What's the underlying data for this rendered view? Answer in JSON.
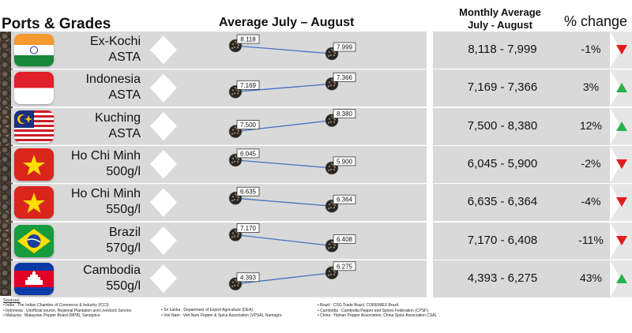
{
  "headers": {
    "ports_grades": "Ports & Grades",
    "average": "Average July – August",
    "monthly_line1": "Monthly Average",
    "monthly_line2": "July - August",
    "change": "% change"
  },
  "colors": {
    "band": "#d9d9d9",
    "line": "#4472c4",
    "up": "#27b24a",
    "down": "#e31b1b"
  },
  "chart_data": {
    "type": "line",
    "title": "Average July – August",
    "x": [
      "July",
      "August"
    ],
    "series": [
      {
        "name_line1": "Ex-Kochi",
        "name_line2": "ASTA",
        "flag": "india-flag-icon",
        "values": [
          8.118,
          7.999
        ],
        "july_label": "8.118",
        "august_label": "7.999",
        "range": "8,118 - 7,999",
        "change": "-1%",
        "direction": "down"
      },
      {
        "name_line1": "Indonesia",
        "name_line2": "ASTA",
        "flag": "indonesia-flag-icon",
        "values": [
          7.169,
          7.366
        ],
        "july_label": "7.169",
        "august_label": "7.366",
        "range": "7,169 - 7,366",
        "change": "3%",
        "direction": "up"
      },
      {
        "name_line1": "Kuching",
        "name_line2": "ASTA",
        "flag": "malaysia-flag-icon",
        "values": [
          7.5,
          8.38
        ],
        "july_label": "7.500",
        "august_label": "8.380",
        "range": "7,500 - 8,380",
        "change": "12%",
        "direction": "up"
      },
      {
        "name_line1": "Ho Chi Minh",
        "name_line2": "500g/l",
        "flag": "vietnam-flag-icon",
        "values": [
          6.045,
          5.9
        ],
        "july_label": "6.045",
        "august_label": "5.900",
        "range": "6,045 - 5,900",
        "change": "-2%",
        "direction": "down"
      },
      {
        "name_line1": "Ho Chi Minh",
        "name_line2": "550g/l",
        "flag": "vietnam-flag-icon",
        "values": [
          6.635,
          6.364
        ],
        "july_label": "6.635",
        "august_label": "6.364",
        "range": "6,635 - 6,364",
        "change": "-4%",
        "direction": "down"
      },
      {
        "name_line1": "Brazil",
        "name_line2": "570g/l",
        "flag": "brazil-flag-icon",
        "values": [
          7.17,
          6.408
        ],
        "july_label": "7.170",
        "august_label": "6.408",
        "range": "7,170 - 6,408",
        "change": "-11%",
        "direction": "down"
      },
      {
        "name_line1": "Cambodia",
        "name_line2": "550g/l",
        "flag": "cambodia-flag-icon",
        "values": [
          4.393,
          6.275
        ],
        "july_label": "4.393",
        "august_label": "6.275",
        "range": "4,393 - 6,275",
        "change": "43%",
        "direction": "up"
      }
    ]
  },
  "sources": {
    "title": "Sources:",
    "col1": [
      "India : The Indian Chamber of Commerce & Industry (ICCI)",
      "Indonesia : Unofficial source, Regional Plantation and Livestock Service.",
      "Malaysia : Malaysian Pepper Board (MPB), Saraspice."
    ],
    "col2": [
      "Sri Lanka : Department of Export Agriculture (DEA).",
      "Viet Nam : Viet Nam Pepper & Spice Association (VPSA), Namagro."
    ],
    "col3": [
      "Brazil : CSG Trade Brazil, COREIMEX Brazil.",
      "Cambodia : Cambodia Pepper and Spices Federation (CPSF).",
      "China : Hainan Pepper Association, China Spice Association CSA)."
    ]
  }
}
